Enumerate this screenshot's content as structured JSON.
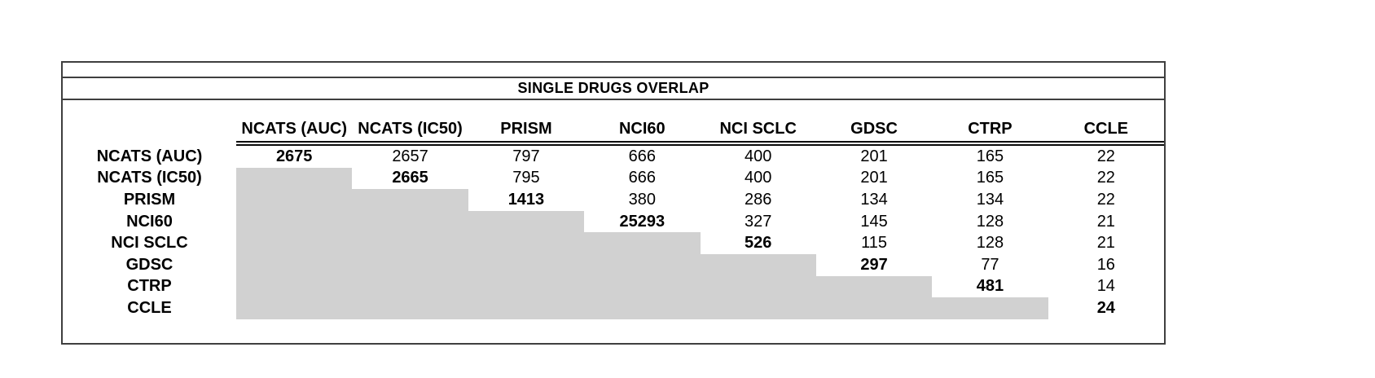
{
  "title_bar": {
    "text": "SINGLE DRUGS OVERLAP"
  },
  "colors": {
    "background": "#ffffff",
    "table_border": "#3f3f3f",
    "header_rule": "#0a0a0a",
    "shaded_cell_fill": "#d1d1d1",
    "text": "#000000"
  },
  "chart_data": {
    "type": "table",
    "title": "SINGLE DRUGS OVERLAP",
    "columns": [
      "NCATS (AUC)",
      "NCATS (IC50)",
      "PRISM",
      "NCI60",
      "NCI SCLC",
      "GDSC",
      "CTRP",
      "CCLE"
    ],
    "rows": [
      "NCATS (AUC)",
      "NCATS (IC50)",
      "PRISM",
      "NCI60",
      "NCI SCLC",
      "GDSC",
      "CTRP",
      "CCLE"
    ],
    "matrix": [
      [
        2675,
        2657,
        797,
        666,
        400,
        201,
        165,
        22
      ],
      [
        null,
        2665,
        795,
        666,
        400,
        201,
        165,
        22
      ],
      [
        null,
        null,
        1413,
        380,
        286,
        134,
        134,
        22
      ],
      [
        null,
        null,
        null,
        25293,
        327,
        145,
        128,
        21
      ],
      [
        null,
        null,
        null,
        null,
        526,
        115,
        128,
        21
      ],
      [
        null,
        null,
        null,
        null,
        null,
        297,
        77,
        16
      ],
      [
        null,
        null,
        null,
        null,
        null,
        null,
        481,
        14
      ],
      [
        null,
        null,
        null,
        null,
        null,
        null,
        null,
        24
      ]
    ],
    "layout_notes": "diagonal values bold; cells below diagonal shaded gray; no internal gridlines; double rule under column headers spanning data columns only"
  }
}
